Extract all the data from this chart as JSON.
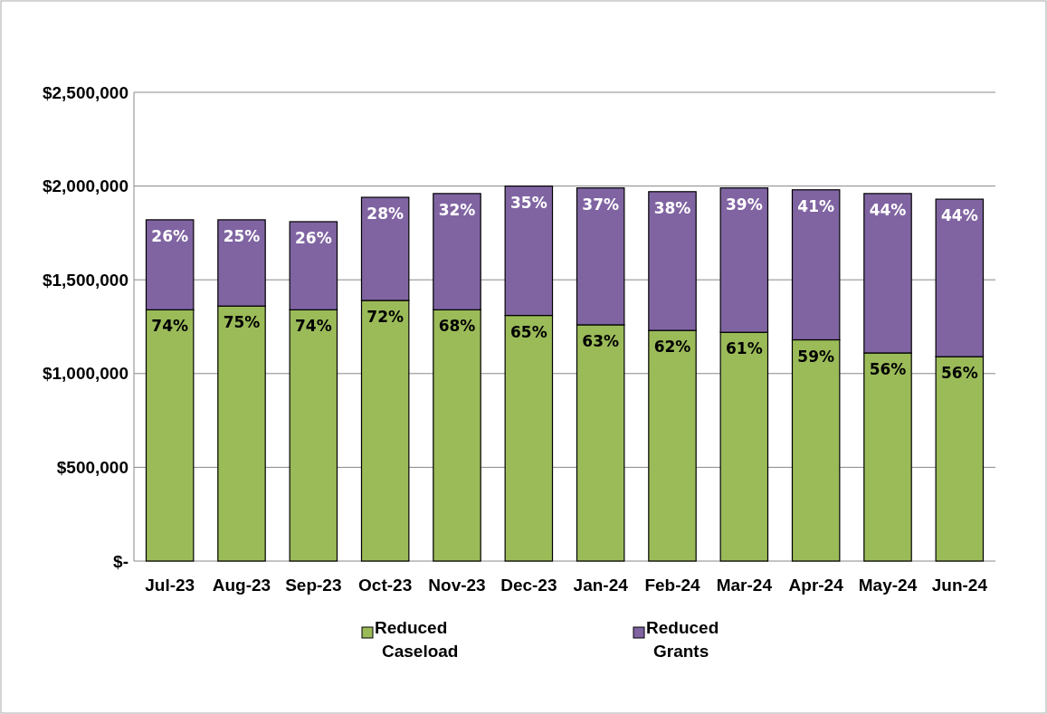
{
  "chart_data": {
    "type": "bar",
    "stacked": true,
    "categories": [
      "Jul-23",
      "Aug-23",
      "Sep-23",
      "Oct-23",
      "Nov-23",
      "Dec-23",
      "Jan-24",
      "Feb-24",
      "Mar-24",
      "Apr-24",
      "May-24",
      "Jun-24"
    ],
    "series": [
      {
        "name": "Reduced Caseload",
        "color": "#9bbb59",
        "values": [
          1340000,
          1360000,
          1340000,
          1390000,
          1340000,
          1310000,
          1260000,
          1230000,
          1220000,
          1180000,
          1110000,
          1090000
        ]
      },
      {
        "name": "Reduced Grants",
        "color": "#8064a2",
        "values": [
          480000,
          460000,
          470000,
          550000,
          620000,
          690000,
          730000,
          740000,
          770000,
          800000,
          850000,
          840000
        ]
      }
    ],
    "annotations": [
      {
        "text": "74%",
        "x": "Jul-23",
        "y": 1340000
      },
      {
        "text": "75%",
        "x": "Aug-23",
        "y": 1360000
      },
      {
        "text": "74%",
        "x": "Sep-23",
        "y": 1340000
      },
      {
        "text": "72%",
        "x": "Oct-23",
        "y": 1390000
      },
      {
        "text": "68%",
        "x": "Nov-23",
        "y": 1340000
      },
      {
        "text": "65%",
        "x": "Dec-23",
        "y": 1310000
      },
      {
        "text": "63%",
        "x": "Jan-24",
        "y": 1260000
      },
      {
        "text": "62%",
        "x": "Feb-24",
        "y": 1230000
      },
      {
        "text": "61%",
        "x": "Mar-24",
        "y": 1220000
      },
      {
        "text": "59%",
        "x": "Apr-24",
        "y": 1180000
      },
      {
        "text": "56%",
        "x": "May-24",
        "y": 1110000
      },
      {
        "text": "56%",
        "x": "Jun-24",
        "y": 1090000
      },
      {
        "text": "26%",
        "x": "Jul-23",
        "y": 1820000
      },
      {
        "text": "25%",
        "x": "Aug-23",
        "y": 1820000
      },
      {
        "text": "26%",
        "x": "Sep-23",
        "y": 1810000
      },
      {
        "text": "28%",
        "x": "Oct-23",
        "y": 1940000
      },
      {
        "text": "32%",
        "x": "Nov-23",
        "y": 1960000
      },
      {
        "text": "35%",
        "x": "Dec-23",
        "y": 2000000
      },
      {
        "text": "37%",
        "x": "Jan-24",
        "y": 1990000
      },
      {
        "text": "38%",
        "x": "Feb-24",
        "y": 1970000
      },
      {
        "text": "39%",
        "x": "Mar-24",
        "y": 1990000
      },
      {
        "text": "41%",
        "x": "Apr-24",
        "y": 1980000
      },
      {
        "text": "44%",
        "x": "May-24",
        "y": 1960000
      },
      {
        "text": "44%",
        "x": "Jun-24",
        "y": 1930000
      }
    ],
    "ylim": [
      0,
      2500000
    ],
    "yticks": [
      {
        "value": 0,
        "label": "$-"
      },
      {
        "value": 500000,
        "label": "$500,000"
      },
      {
        "value": 1000000,
        "label": "$1,000,000"
      },
      {
        "value": 1500000,
        "label": "$1,500,000"
      },
      {
        "value": 2000000,
        "label": "$2,000,000"
      },
      {
        "value": 2500000,
        "label": "$2,500,000"
      }
    ],
    "grid": "y",
    "legend": "bottom"
  }
}
